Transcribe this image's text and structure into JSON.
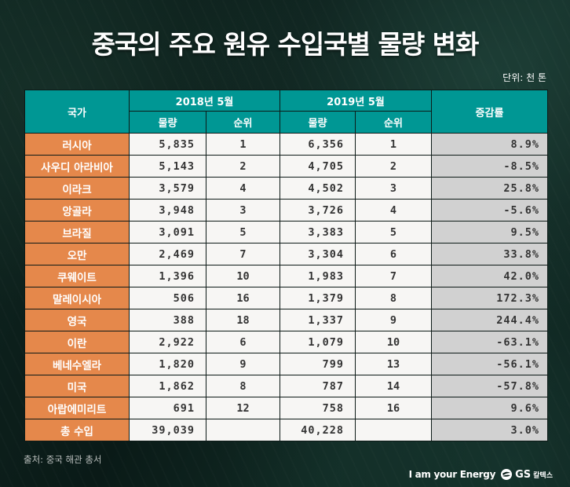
{
  "title": "중국의 주요 원유 수입국별 물량 변화",
  "unit": "단위: 천 톤",
  "table": {
    "header": {
      "country": "국가",
      "period1": "2018년 5월",
      "period2": "2019년 5월",
      "change": "증감률",
      "volume": "물량",
      "rank": "순위"
    },
    "rows": [
      {
        "country": "러시아",
        "vol2018": "5,835",
        "rank2018": "1",
        "vol2019": "6,356",
        "rank2019": "1",
        "change": "8.9%"
      },
      {
        "country": "사우디 아라비아",
        "vol2018": "5,143",
        "rank2018": "2",
        "vol2019": "4,705",
        "rank2019": "2",
        "change": "-8.5%"
      },
      {
        "country": "이라크",
        "vol2018": "3,579",
        "rank2018": "4",
        "vol2019": "4,502",
        "rank2019": "3",
        "change": "25.8%"
      },
      {
        "country": "앙골라",
        "vol2018": "3,948",
        "rank2018": "3",
        "vol2019": "3,726",
        "rank2019": "4",
        "change": "-5.6%"
      },
      {
        "country": "브라질",
        "vol2018": "3,091",
        "rank2018": "5",
        "vol2019": "3,383",
        "rank2019": "5",
        "change": "9.5%"
      },
      {
        "country": "오만",
        "vol2018": "2,469",
        "rank2018": "7",
        "vol2019": "3,304",
        "rank2019": "6",
        "change": "33.8%"
      },
      {
        "country": "쿠웨이트",
        "vol2018": "1,396",
        "rank2018": "10",
        "vol2019": "1,983",
        "rank2019": "7",
        "change": "42.0%"
      },
      {
        "country": "말레이시아",
        "vol2018": "506",
        "rank2018": "16",
        "vol2019": "1,379",
        "rank2019": "8",
        "change": "172.3%"
      },
      {
        "country": "영국",
        "vol2018": "388",
        "rank2018": "18",
        "vol2019": "1,337",
        "rank2019": "9",
        "change": "244.4%"
      },
      {
        "country": "이란",
        "vol2018": "2,922",
        "rank2018": "6",
        "vol2019": "1,079",
        "rank2019": "10",
        "change": "-63.1%"
      },
      {
        "country": "베네수엘라",
        "vol2018": "1,820",
        "rank2018": "9",
        "vol2019": "799",
        "rank2019": "13",
        "change": "-56.1%"
      },
      {
        "country": "미국",
        "vol2018": "1,862",
        "rank2018": "8",
        "vol2019": "787",
        "rank2019": "14",
        "change": "-57.8%"
      },
      {
        "country": "아랍에미리트",
        "vol2018": "691",
        "rank2018": "12",
        "vol2019": "758",
        "rank2019": "16",
        "change": "9.6%"
      },
      {
        "country": "총 수입",
        "vol2018": "39,039",
        "rank2018": "",
        "vol2019": "40,228",
        "rank2019": "",
        "change": "3.0%"
      }
    ]
  },
  "source": "출처: 중국 해관 총서",
  "brand": {
    "slogan": "I am your Energy",
    "logo_text": "GS",
    "logo_sub": "칼텍스"
  },
  "colors": {
    "header_bg": "#009794",
    "country_bg": "#e5884b",
    "cell_bg": "#f7f6f4",
    "change_bg": "#d1d1d1",
    "page_bg": "#0c1e1a"
  },
  "chart_data": {
    "type": "table",
    "title": "중국의 주요 원유 수입국별 물량 변화",
    "unit": "천 톤",
    "columns": [
      "국가",
      "2018년 5월 물량",
      "2018년 5월 순위",
      "2019년 5월 물량",
      "2019년 5월 순위",
      "증감률"
    ],
    "categories": [
      "러시아",
      "사우디 아라비아",
      "이라크",
      "앙골라",
      "브라질",
      "오만",
      "쿠웨이트",
      "말레이시아",
      "영국",
      "이란",
      "베네수엘라",
      "미국",
      "아랍에미리트",
      "총 수입"
    ],
    "series": [
      {
        "name": "2018년 5월 물량",
        "values": [
          5835,
          5143,
          3579,
          3948,
          3091,
          2469,
          1396,
          506,
          388,
          2922,
          1820,
          1862,
          691,
          39039
        ]
      },
      {
        "name": "2018년 5월 순위",
        "values": [
          1,
          2,
          4,
          3,
          5,
          7,
          10,
          16,
          18,
          6,
          9,
          8,
          12,
          null
        ]
      },
      {
        "name": "2019년 5월 물량",
        "values": [
          6356,
          4705,
          4502,
          3726,
          3383,
          3304,
          1983,
          1379,
          1337,
          1079,
          799,
          787,
          758,
          40228
        ]
      },
      {
        "name": "2019년 5월 순위",
        "values": [
          1,
          2,
          3,
          4,
          5,
          6,
          7,
          8,
          9,
          10,
          13,
          14,
          16,
          null
        ]
      },
      {
        "name": "증감률 (%)",
        "values": [
          8.9,
          -8.5,
          25.8,
          -5.6,
          9.5,
          33.8,
          42.0,
          172.3,
          244.4,
          -63.1,
          -56.1,
          -57.8,
          9.6,
          3.0
        ]
      }
    ],
    "source": "중국 해관 총서"
  }
}
